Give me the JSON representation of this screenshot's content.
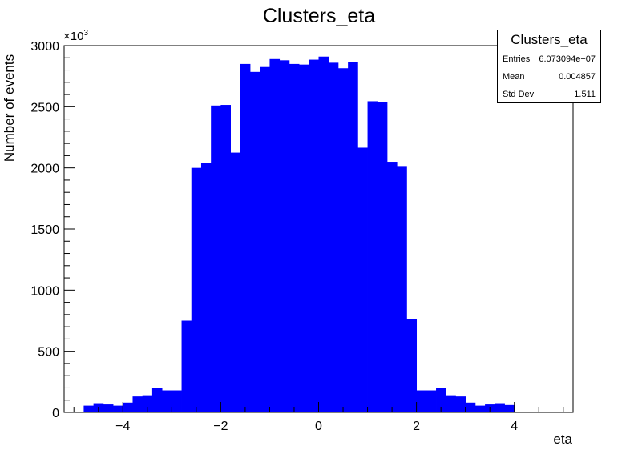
{
  "chart_data": {
    "type": "bar",
    "title": "Clusters_eta",
    "xlabel": "eta",
    "ylabel": "Number of events",
    "y_multiplier_label": "×10",
    "y_multiplier_exp": "3",
    "xlim": [
      -5.2,
      5.2
    ],
    "ylim": [
      0,
      3000
    ],
    "x_ticks": [
      -4,
      -2,
      0,
      2,
      4
    ],
    "x_tick_labels": [
      "−4",
      "−2",
      "0",
      "2",
      "4"
    ],
    "y_ticks": [
      0,
      500,
      1000,
      1500,
      2000,
      2500,
      3000
    ],
    "y_tick_labels": [
      "0",
      "500",
      "1000",
      "1500",
      "2000",
      "2500",
      "3000"
    ],
    "bin_width": 0.2,
    "bin_edges_start": -4.8,
    "values": [
      55,
      75,
      65,
      55,
      80,
      130,
      140,
      200,
      180,
      180,
      750,
      2000,
      2040,
      2510,
      2515,
      2125,
      2850,
      2785,
      2825,
      2890,
      2880,
      2850,
      2845,
      2885,
      2910,
      2860,
      2815,
      2865,
      2165,
      2545,
      2535,
      2050,
      2015,
      760,
      180,
      180,
      200,
      140,
      130,
      80,
      55,
      65,
      75,
      60
    ],
    "bar_color": "#0000ff",
    "grid": false,
    "legend": "none"
  },
  "stats_box": {
    "title": "Clusters_eta",
    "rows": [
      {
        "label": "Entries",
        "value": "6.073094e+07"
      },
      {
        "label": "Mean",
        "value": "0.004857"
      },
      {
        "label": "Std Dev",
        "value": "1.511"
      }
    ]
  }
}
